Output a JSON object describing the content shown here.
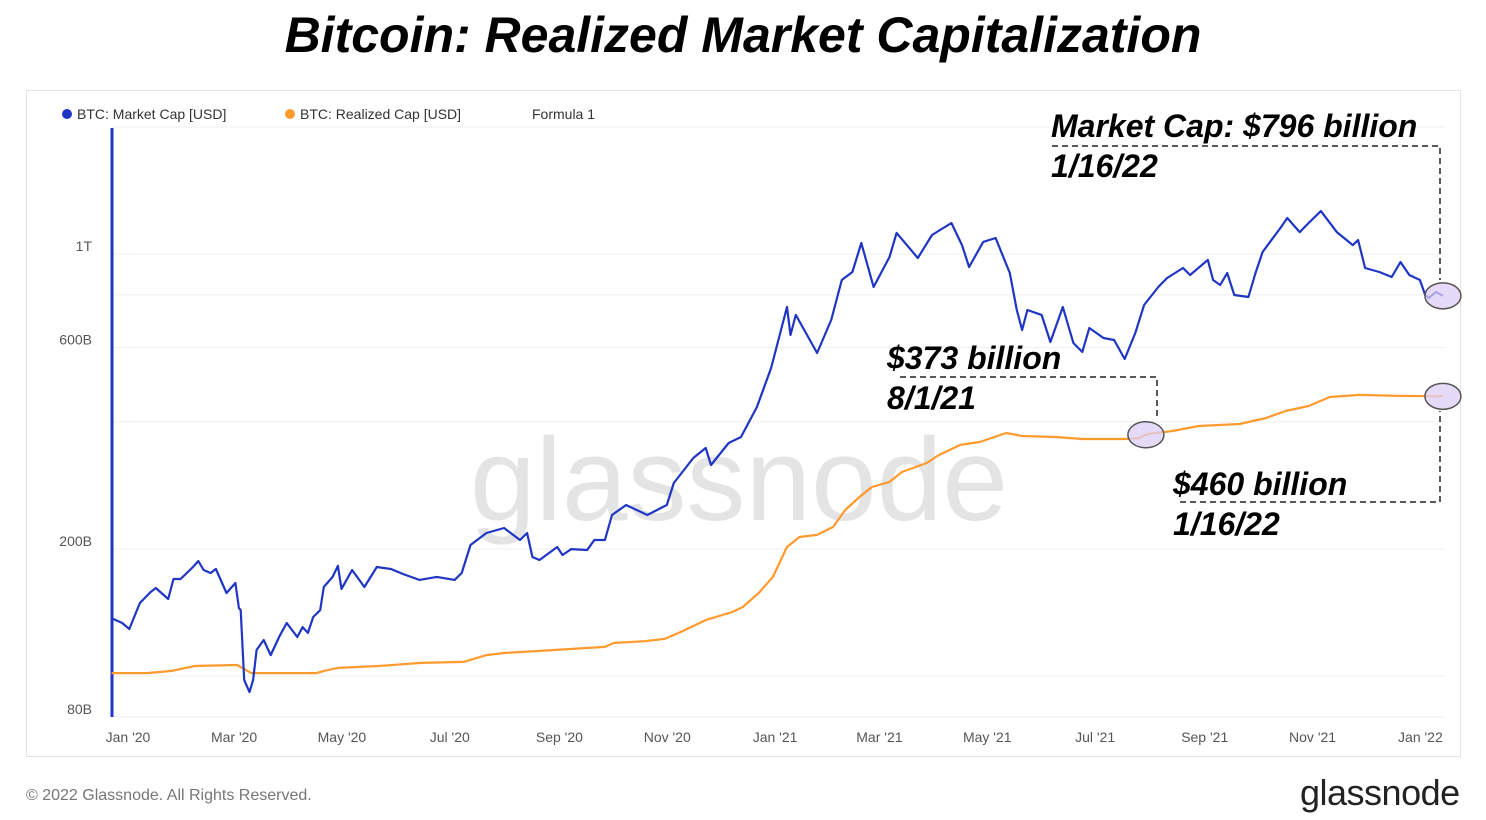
{
  "title": "Bitcoin: Realized Market Capitalization",
  "footer": "© 2022 Glassnode. All Rights Reserved.",
  "logo": "glassnode",
  "watermark": "glassnode",
  "colors": {
    "market_cap": "#1f35c4",
    "realized_cap": "#ff9a2e",
    "highlight": "#dccff5"
  },
  "annotations": {
    "market_cap_value": "Market Cap: $796 billion",
    "market_cap_date": "1/16/22",
    "realized_aug_value": "$373 billion",
    "realized_aug_date": "8/1/21",
    "realized_jan_value": "$460 billion",
    "realized_jan_date": "1/16/22"
  },
  "chart_data": {
    "type": "line",
    "title": "Bitcoin: Realized Market Capitalization",
    "legend": [
      "BTC: Market Cap [USD]",
      "BTC: Realized Cap [USD]",
      "Formula 1"
    ],
    "legend_position": "top-left",
    "y_scale": "log",
    "y_unit": "billion USD",
    "ylim": [
      80,
      2000
    ],
    "y_gridlines": [
      80,
      100,
      200,
      400,
      600,
      800,
      1000,
      2000
    ],
    "y_ticks": [
      {
        "value": 80,
        "label": "80B"
      },
      {
        "value": 200,
        "label": "200B"
      },
      {
        "value": 600,
        "label": "600B"
      },
      {
        "value": 1000,
        "label": "1T"
      }
    ],
    "x_range": [
      "2019-12-25",
      "2022-01-16"
    ],
    "x_ticks": [
      {
        "date": "2020-01-01",
        "label": "Jan '20"
      },
      {
        "date": "2020-03-01",
        "label": "Mar '20"
      },
      {
        "date": "2020-05-01",
        "label": "May '20"
      },
      {
        "date": "2020-07-01",
        "label": "Jul '20"
      },
      {
        "date": "2020-09-01",
        "label": "Sep '20"
      },
      {
        "date": "2020-11-01",
        "label": "Nov '20"
      },
      {
        "date": "2021-01-01",
        "label": "Jan '21"
      },
      {
        "date": "2021-03-01",
        "label": "Mar '21"
      },
      {
        "date": "2021-05-01",
        "label": "May '21"
      },
      {
        "date": "2021-07-01",
        "label": "Jul '21"
      },
      {
        "date": "2021-09-01",
        "label": "Sep '21"
      },
      {
        "date": "2021-11-01",
        "label": "Nov '21"
      },
      {
        "date": "2022-01-01",
        "label": "Jan '22"
      }
    ],
    "grid": true,
    "series": [
      {
        "name": "BTC: Market Cap [USD]",
        "color": "#1f35c4",
        "points": [
          [
            "2019-12-25",
            137
          ],
          [
            "2019-12-31",
            133.5
          ],
          [
            "2020-01-04",
            129.2
          ],
          [
            "2020-01-10",
            148.9
          ],
          [
            "2020-01-16",
            158.1
          ],
          [
            "2020-01-19",
            161.6
          ],
          [
            "2020-01-26",
            152.2
          ],
          [
            "2020-01-29",
            169.8
          ],
          [
            "2020-02-02",
            169.8
          ],
          [
            "2020-02-09",
            181.3
          ],
          [
            "2020-02-12",
            187.3
          ],
          [
            "2020-02-15",
            178.3
          ],
          [
            "2020-02-19",
            175.4
          ],
          [
            "2020-02-22",
            179.3
          ],
          [
            "2020-02-28",
            157.3
          ],
          [
            "2020-03-04",
            166.1
          ],
          [
            "2020-03-06",
            144.9
          ],
          [
            "2020-03-07",
            143.3
          ],
          [
            "2020-03-09",
            97.8
          ],
          [
            "2020-03-12",
            91.6
          ],
          [
            "2020-03-14",
            97.8
          ],
          [
            "2020-03-16",
            115.3
          ],
          [
            "2020-03-20",
            121.7
          ],
          [
            "2020-03-24",
            112.1
          ],
          [
            "2020-03-29",
            124.4
          ],
          [
            "2020-04-02",
            133.5
          ],
          [
            "2020-04-08",
            123.7
          ],
          [
            "2020-04-11",
            130.6
          ],
          [
            "2020-04-14",
            126.5
          ],
          [
            "2020-04-17",
            138.0
          ],
          [
            "2020-04-21",
            143.3
          ],
          [
            "2020-04-23",
            162.5
          ],
          [
            "2020-04-28",
            171.7
          ],
          [
            "2020-05-01",
            182.3
          ],
          [
            "2020-05-03",
            160.8
          ],
          [
            "2020-05-09",
            178.3
          ],
          [
            "2020-05-16",
            162.5
          ],
          [
            "2020-05-23",
            181.3
          ],
          [
            "2020-05-31",
            179.3
          ],
          [
            "2020-06-07",
            174.4
          ],
          [
            "2020-06-16",
            168.9
          ],
          [
            "2020-06-26",
            171.7
          ],
          [
            "2020-07-06",
            168.9
          ],
          [
            "2020-07-10",
            175.4
          ],
          [
            "2020-07-15",
            204.4
          ],
          [
            "2020-07-24",
            218.2
          ],
          [
            "2020-08-03",
            224.2
          ],
          [
            "2020-08-12",
            210.0
          ],
          [
            "2020-08-16",
            218.2
          ],
          [
            "2020-08-19",
            191.4
          ],
          [
            "2020-08-23",
            188.3
          ],
          [
            "2020-09-02",
            202.2
          ],
          [
            "2020-09-05",
            193.5
          ],
          [
            "2020-09-10",
            199.9
          ],
          [
            "2020-09-19",
            198.9
          ],
          [
            "2020-09-23",
            210.0
          ],
          [
            "2020-09-29",
            210.0
          ],
          [
            "2020-10-03",
            240.7
          ],
          [
            "2020-10-11",
            254.2
          ],
          [
            "2020-10-23",
            240.7
          ],
          [
            "2020-11-03",
            254.2
          ],
          [
            "2020-11-07",
            286.6
          ],
          [
            "2020-11-18",
            328.6
          ],
          [
            "2020-11-25",
            347.0
          ],
          [
            "2020-11-28",
            316.2
          ],
          [
            "2020-12-08",
            356.6
          ],
          [
            "2020-12-15",
            368.5
          ],
          [
            "2020-12-24",
            433.9
          ],
          [
            "2021-01-01",
            537.0
          ],
          [
            "2021-01-10",
            748.8
          ],
          [
            "2021-01-12",
            642.9
          ],
          [
            "2021-01-15",
            717.1
          ],
          [
            "2021-01-27",
            582.6
          ],
          [
            "2021-02-04",
            697.7
          ],
          [
            "2021-02-10",
            867.8
          ],
          [
            "2021-02-16",
            906.6
          ],
          [
            "2021-02-21",
            1062
          ],
          [
            "2021-02-28",
            835.3
          ],
          [
            "2021-03-09",
            984
          ],
          [
            "2021-03-13",
            1122
          ],
          [
            "2021-03-25",
            978.4
          ],
          [
            "2021-04-02",
            1109
          ],
          [
            "2021-04-13",
            1184
          ],
          [
            "2021-04-19",
            1050
          ],
          [
            "2021-04-23",
            931.5
          ],
          [
            "2021-05-01",
            1068
          ],
          [
            "2021-05-08",
            1091
          ],
          [
            "2021-05-16",
            901.6
          ],
          [
            "2021-05-20",
            736.6
          ],
          [
            "2021-05-23",
            660.7
          ],
          [
            "2021-05-26",
            736.6
          ],
          [
            "2021-06-03",
            717.1
          ],
          [
            "2021-06-08",
            618.8
          ],
          [
            "2021-06-15",
            748.8
          ],
          [
            "2021-06-21",
            615.4
          ],
          [
            "2021-06-26",
            585.8
          ],
          [
            "2021-06-30",
            667.9
          ],
          [
            "2021-07-08",
            632.4
          ],
          [
            "2021-07-14",
            625.5
          ],
          [
            "2021-07-20",
            563.9
          ],
          [
            "2021-07-26",
            649.9
          ],
          [
            "2021-07-31",
            757
          ],
          [
            "2021-08-08",
            835.3
          ],
          [
            "2021-08-13",
            877.3
          ],
          [
            "2021-08-22",
            926.4
          ],
          [
            "2021-08-26",
            891.6
          ],
          [
            "2021-09-05",
            968.2
          ],
          [
            "2021-09-08",
            867.8
          ],
          [
            "2021-09-12",
            844.4
          ],
          [
            "2021-09-16",
            901.6
          ],
          [
            "2021-09-20",
            799.4
          ],
          [
            "2021-09-28",
            790.8
          ],
          [
            "2021-10-02",
            901.6
          ],
          [
            "2021-10-06",
            1011
          ],
          [
            "2021-10-16",
            1152
          ],
          [
            "2021-10-20",
            1217
          ],
          [
            "2021-10-27",
            1127
          ],
          [
            "2021-11-01",
            1184
          ],
          [
            "2021-11-08",
            1264
          ],
          [
            "2021-11-17",
            1127
          ],
          [
            "2021-11-26",
            1050
          ],
          [
            "2021-11-29",
            1079
          ],
          [
            "2021-12-03",
            926.4
          ],
          [
            "2021-12-11",
            906.6
          ],
          [
            "2021-12-18",
            882.1
          ],
          [
            "2021-12-23",
            957.2
          ],
          [
            "2021-12-28",
            891.6
          ],
          [
            "2022-01-03",
            867.8
          ],
          [
            "2022-01-06",
            799.4
          ],
          [
            "2022-01-08",
            786.5
          ],
          [
            "2022-01-12",
            812.8
          ],
          [
            "2022-01-16",
            796
          ]
        ]
      },
      {
        "name": "BTC: Realized Cap [USD]",
        "color": "#ff9a2e",
        "points": [
          [
            "2019-12-25",
            101.6
          ],
          [
            "2020-01-14",
            101.6
          ],
          [
            "2020-01-28",
            102.8
          ],
          [
            "2020-02-10",
            105.6
          ],
          [
            "2020-03-05",
            106.2
          ],
          [
            "2020-03-07",
            105.0
          ],
          [
            "2020-03-13",
            101.6
          ],
          [
            "2020-03-28",
            101.6
          ],
          [
            "2020-04-19",
            101.6
          ],
          [
            "2020-04-23",
            102.8
          ],
          [
            "2020-05-01",
            104.5
          ],
          [
            "2020-05-24",
            105.6
          ],
          [
            "2020-06-17",
            107.4
          ],
          [
            "2020-07-11",
            108.0
          ],
          [
            "2020-07-24",
            112.1
          ],
          [
            "2020-08-03",
            113.4
          ],
          [
            "2020-08-22",
            114.6
          ],
          [
            "2020-09-29",
            117.2
          ],
          [
            "2020-10-04",
            119.7
          ],
          [
            "2020-10-22",
            121.0
          ],
          [
            "2020-11-02",
            122.5
          ],
          [
            "2020-11-11",
            127.2
          ],
          [
            "2020-11-25",
            135.7
          ],
          [
            "2020-12-10",
            141.8
          ],
          [
            "2020-12-16",
            145.7
          ],
          [
            "2020-12-25",
            157.3
          ],
          [
            "2021-01-02",
            171.7
          ],
          [
            "2021-01-10",
            202.2
          ],
          [
            "2021-01-17",
            213.5
          ],
          [
            "2021-01-27",
            215.9
          ],
          [
            "2021-02-05",
            225.5
          ],
          [
            "2021-02-12",
            247.5
          ],
          [
            "2021-02-20",
            265.6
          ],
          [
            "2021-02-27",
            280.5
          ],
          [
            "2021-03-09",
            288.3
          ],
          [
            "2021-03-16",
            304.4
          ],
          [
            "2021-03-30",
            319.7
          ],
          [
            "2021-04-06",
            334.0
          ],
          [
            "2021-04-18",
            352.8
          ],
          [
            "2021-04-29",
            358.6
          ],
          [
            "2021-05-14",
            376.6
          ],
          [
            "2021-05-23",
            370.5
          ],
          [
            "2021-06-11",
            368.5
          ],
          [
            "2021-06-26",
            364.5
          ],
          [
            "2021-07-20",
            364.5
          ],
          [
            "2021-07-28",
            366
          ],
          [
            "2021-08-01",
            373
          ],
          [
            "2021-08-03",
            375
          ],
          [
            "2021-08-16",
            380.7
          ],
          [
            "2021-08-31",
            391.2
          ],
          [
            "2021-09-23",
            395.5
          ],
          [
            "2021-10-08",
            408.7
          ],
          [
            "2021-10-19",
            424.6
          ],
          [
            "2021-11-01",
            436.3
          ],
          [
            "2021-11-13",
            458.4
          ],
          [
            "2021-11-30",
            463.5
          ],
          [
            "2021-12-23",
            461.0
          ],
          [
            "2022-01-16",
            460
          ]
        ]
      }
    ],
    "highlights": [
      {
        "series": "BTC: Market Cap [USD]",
        "date": "2022-01-16",
        "value": 796
      },
      {
        "series": "BTC: Realized Cap [USD]",
        "date": "2021-08-01",
        "value": 373
      },
      {
        "series": "BTC: Realized Cap [USD]",
        "date": "2022-01-16",
        "value": 460
      }
    ]
  }
}
